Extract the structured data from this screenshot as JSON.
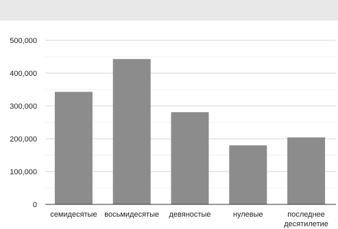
{
  "chart_data": {
    "type": "bar",
    "title": "",
    "xlabel": "",
    "ylabel": "",
    "categories": [
      "семидесятые",
      "восьмидесятые",
      "девяностые",
      "нулевые",
      "последнее десятилетие"
    ],
    "category_lines": [
      [
        "семидесятые"
      ],
      [
        "восьмидесятые"
      ],
      [
        "девяностые"
      ],
      [
        "нулевые"
      ],
      [
        "последнее",
        "десятилетие"
      ]
    ],
    "values": [
      343000,
      443000,
      281000,
      180000,
      204000
    ],
    "ylim": [
      0,
      500000
    ],
    "yticks": [
      "0",
      "100,000",
      "200,000",
      "300,000",
      "400,000",
      "500,000"
    ],
    "bar_color": "#8c8c8c",
    "grid": true,
    "legend": "none"
  }
}
